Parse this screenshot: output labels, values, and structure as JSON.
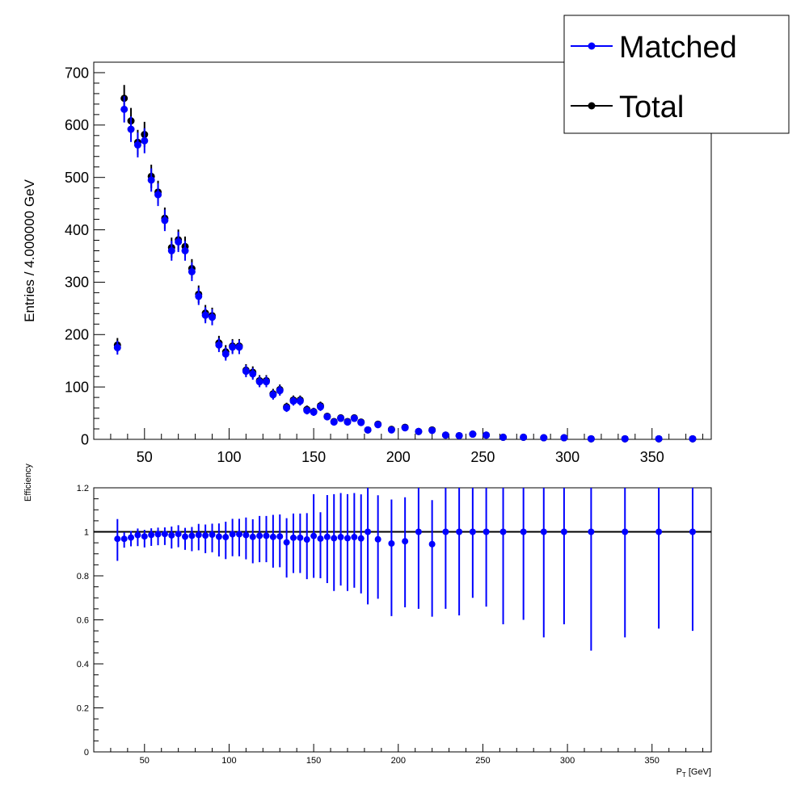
{
  "chart_data": [
    {
      "type": "scatter",
      "title": "",
      "xlabel": "",
      "ylabel": "Entries / 4.000000 GeV",
      "xlim": [
        20,
        385
      ],
      "ylim": [
        0,
        720
      ],
      "xticks": [
        50,
        100,
        150,
        200,
        250,
        300,
        350
      ],
      "yticks": [
        0,
        100,
        200,
        300,
        400,
        500,
        600,
        700
      ],
      "legend_position": "top-right",
      "grid": false,
      "series": [
        {
          "name": "Matched",
          "color": "#0000ff",
          "x": [
            34,
            38,
            42,
            46,
            50,
            54,
            58,
            62,
            66,
            70,
            74,
            78,
            82,
            86,
            90,
            94,
            98,
            102,
            106,
            110,
            114,
            118,
            122,
            126,
            130,
            134,
            138,
            142,
            146,
            150,
            154,
            158,
            162,
            166,
            170,
            174,
            178,
            182,
            188,
            196,
            204,
            212,
            220,
            228,
            236,
            244,
            252,
            262,
            274,
            286,
            298,
            314,
            334,
            354,
            374
          ],
          "y": [
            175,
            630,
            592,
            562,
            570,
            495,
            467,
            418,
            360,
            377,
            360,
            320,
            273,
            237,
            233,
            180,
            163,
            176,
            176,
            130,
            125,
            110,
            110,
            85,
            93,
            60,
            73,
            73,
            55,
            52,
            62,
            43,
            33,
            40,
            33,
            40,
            32,
            18,
            28,
            18,
            22,
            15,
            17,
            8,
            7,
            10,
            8,
            4,
            4,
            3,
            3,
            1,
            1,
            1,
            1
          ]
        },
        {
          "name": "Total",
          "color": "#000000",
          "x": [
            34,
            38,
            42,
            46,
            50,
            54,
            58,
            62,
            66,
            70,
            74,
            78,
            82,
            86,
            90,
            94,
            98,
            102,
            106,
            110,
            114,
            118,
            122,
            126,
            130,
            134,
            138,
            142,
            146,
            150,
            154,
            158,
            162,
            166,
            170,
            174,
            178,
            182,
            188,
            196,
            204,
            212,
            220,
            228,
            236,
            244,
            252,
            262,
            274,
            286,
            298,
            314,
            334,
            354,
            374
          ],
          "y": [
            180,
            651,
            608,
            567,
            582,
            502,
            472,
            422,
            366,
            381,
            368,
            326,
            277,
            241,
            236,
            184,
            167,
            178,
            178,
            132,
            128,
            112,
            112,
            87,
            95,
            62,
            75,
            75,
            57,
            53,
            64,
            44,
            34,
            41,
            34,
            41,
            33,
            18,
            29,
            19,
            23,
            15,
            18,
            8,
            7,
            10,
            8,
            4,
            4,
            3,
            3,
            1,
            1,
            1,
            1
          ]
        }
      ]
    },
    {
      "type": "scatter",
      "title": "",
      "xlabel": "P",
      "xlabel_sub": "T",
      "xlabel_unit": " [GeV]",
      "ylabel": "Efficiency",
      "xlim": [
        20,
        385
      ],
      "ylim": [
        0,
        1.2
      ],
      "xticks": [
        50,
        100,
        150,
        200,
        250,
        300,
        350
      ],
      "yticks": [
        0,
        0.2,
        0.4,
        0.6,
        0.8,
        1,
        1.2
      ],
      "reference_line": 1,
      "grid": false,
      "series": [
        {
          "name": "Efficiency",
          "color": "#0000ff",
          "x": [
            34,
            38,
            42,
            46,
            50,
            54,
            58,
            62,
            66,
            70,
            74,
            78,
            82,
            86,
            90,
            94,
            98,
            102,
            106,
            110,
            114,
            118,
            122,
            126,
            130,
            134,
            138,
            142,
            146,
            150,
            154,
            158,
            162,
            166,
            170,
            174,
            178,
            182,
            188,
            196,
            204,
            212,
            220,
            228,
            236,
            244,
            252,
            262,
            274,
            286,
            298,
            314,
            334,
            354,
            374
          ],
          "y": [
            0.968,
            0.968,
            0.974,
            0.985,
            0.979,
            0.986,
            0.989,
            0.99,
            0.984,
            0.99,
            0.978,
            0.982,
            0.986,
            0.983,
            0.987,
            0.978,
            0.976,
            0.989,
            0.989,
            0.985,
            0.977,
            0.982,
            0.982,
            0.977,
            0.979,
            0.952,
            0.973,
            0.973,
            0.965,
            0.981,
            0.969,
            0.977,
            0.971,
            0.976,
            0.971,
            0.976,
            0.97,
            1,
            0.966,
            0.947,
            0.957,
            1,
            0.944,
            1,
            1,
            1,
            1,
            1,
            1,
            1,
            1,
            1,
            1,
            1,
            1
          ],
          "err_low": [
            0.1,
            0.04,
            0.04,
            0.05,
            0.05,
            0.05,
            0.05,
            0.05,
            0.06,
            0.06,
            0.06,
            0.07,
            0.07,
            0.08,
            0.08,
            0.09,
            0.1,
            0.1,
            0.1,
            0.11,
            0.12,
            0.12,
            0.12,
            0.14,
            0.14,
            0.16,
            0.16,
            0.16,
            0.18,
            0.19,
            0.18,
            0.21,
            0.24,
            0.22,
            0.24,
            0.23,
            0.25,
            0.33,
            0.27,
            0.33,
            0.3,
            0.35,
            0.33,
            0.35,
            0.38,
            0.3,
            0.34,
            0.42,
            0.4,
            0.48,
            0.42,
            0.54,
            0.48,
            0.44,
            0.45
          ],
          "err_high": [
            0.09,
            0.03,
            0.03,
            0.03,
            0.03,
            0.03,
            0.03,
            0.03,
            0.04,
            0.04,
            0.04,
            0.04,
            0.05,
            0.05,
            0.05,
            0.06,
            0.07,
            0.07,
            0.07,
            0.08,
            0.08,
            0.09,
            0.09,
            0.1,
            0.1,
            0.11,
            0.11,
            0.11,
            0.12,
            0.19,
            0.12,
            0.19,
            0.2,
            0.2,
            0.2,
            0.2,
            0.2,
            0.2,
            0.2,
            0.2,
            0.2,
            0.2,
            0.2,
            0.2,
            0.2,
            0.2,
            0.2,
            0.2,
            0.2,
            0.2,
            0.2,
            0.2,
            0.2,
            0.2,
            0.2
          ]
        }
      ]
    }
  ]
}
